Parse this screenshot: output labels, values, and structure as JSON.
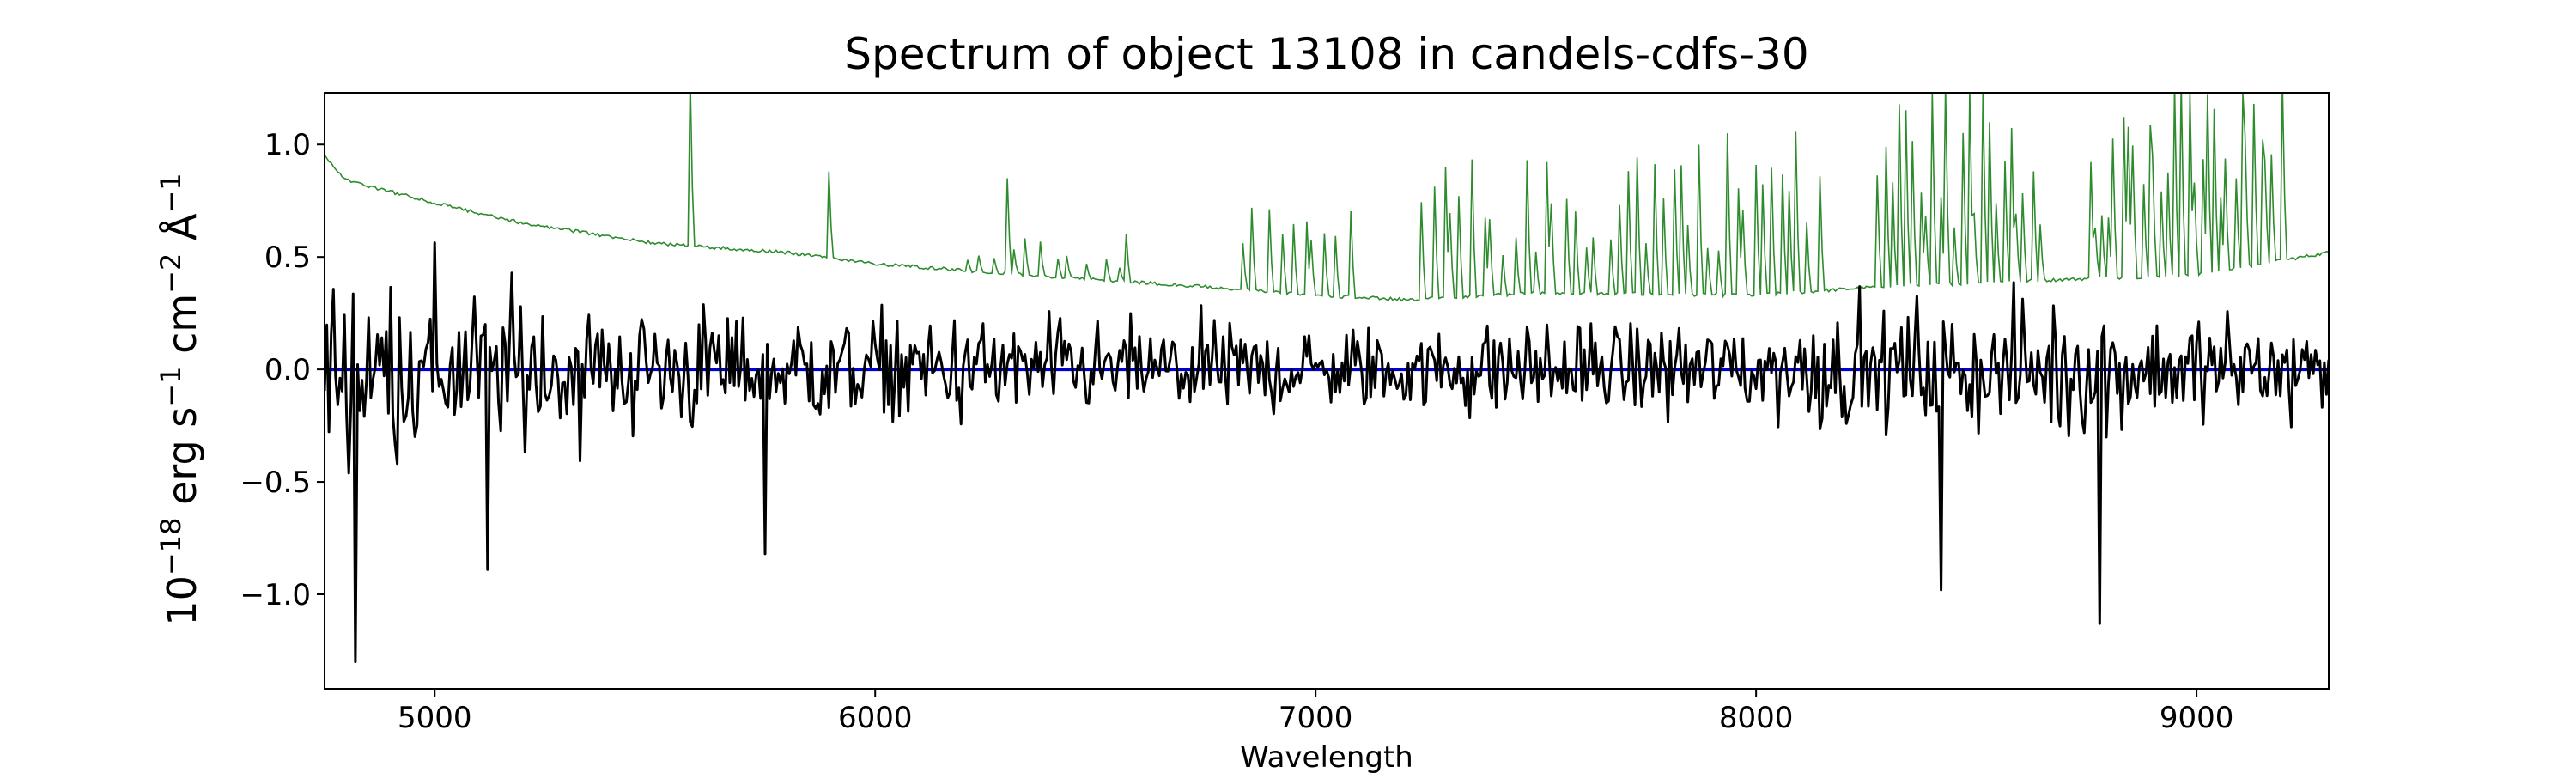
{
  "chart_data": {
    "type": "line",
    "title": "Spectrum of object 13108 in candels-cdfs-30",
    "xlabel": "Wavelength",
    "ylabel": {
      "parts": [
        "10",
        "−18",
        " erg s",
        "−1",
        " cm",
        "−2",
        " Å",
        "−1"
      ]
    },
    "xlim": [
      4750,
      9300
    ],
    "ylim": [
      -1.42,
      1.23
    ],
    "xticks": [
      5000,
      6000,
      7000,
      8000,
      9000
    ],
    "xtick_labels": [
      "5000",
      "6000",
      "7000",
      "8000",
      "9000"
    ],
    "yticks": [
      -1.0,
      -0.5,
      0.0,
      0.5,
      1.0
    ],
    "ytick_labels": [
      "−1.0",
      "−0.5",
      "0.0",
      "0.5",
      "1.0"
    ],
    "grid": false,
    "series": [
      {
        "role": "error",
        "color": "#2e8b2e",
        "continuum": [
          [
            4750,
            0.95
          ],
          [
            4800,
            0.84
          ],
          [
            5000,
            0.74
          ],
          [
            5200,
            0.65
          ],
          [
            5500,
            0.56
          ],
          [
            5800,
            0.52
          ],
          [
            6000,
            0.47
          ],
          [
            6200,
            0.44
          ],
          [
            6500,
            0.4
          ],
          [
            6800,
            0.36
          ],
          [
            7000,
            0.33
          ],
          [
            7200,
            0.31
          ],
          [
            7500,
            0.34
          ],
          [
            8000,
            0.33
          ],
          [
            8300,
            0.37
          ],
          [
            8700,
            0.4
          ],
          [
            9000,
            0.42
          ],
          [
            9300,
            0.52
          ]
        ],
        "emission_regions": [
          {
            "start": 5570,
            "end": 5590,
            "peak": 1.3,
            "count": 1
          },
          {
            "start": 5880,
            "end": 5905,
            "peak": 0.88,
            "count": 1
          },
          {
            "start": 6290,
            "end": 6310,
            "peak": 0.85,
            "count": 1
          },
          {
            "start": 6200,
            "end": 6600,
            "peak": 0.62,
            "count": 12
          },
          {
            "start": 6820,
            "end": 7100,
            "peak": 0.72,
            "count": 10
          },
          {
            "start": 7240,
            "end": 7320,
            "peak": 0.95,
            "count": 4
          },
          {
            "start": 7320,
            "end": 7700,
            "peak": 0.95,
            "count": 16
          },
          {
            "start": 7700,
            "end": 8150,
            "peak": 1.1,
            "count": 22
          },
          {
            "start": 8270,
            "end": 8650,
            "peak": 1.3,
            "count": 24
          },
          {
            "start": 8750,
            "end": 9200,
            "peak": 1.3,
            "count": 30
          }
        ]
      },
      {
        "role": "zero-line",
        "color": "#0000cc",
        "y": 0.0
      },
      {
        "role": "flux",
        "color": "#000000",
        "noise": [
          [
            4750,
            0.38
          ],
          [
            5000,
            0.36
          ],
          [
            5200,
            0.32
          ],
          [
            5500,
            0.26
          ],
          [
            6000,
            0.22
          ],
          [
            6500,
            0.19
          ],
          [
            7000,
            0.17
          ],
          [
            7500,
            0.18
          ],
          [
            8000,
            0.2
          ],
          [
            8300,
            0.24
          ],
          [
            8700,
            0.26
          ],
          [
            9000,
            0.23
          ],
          [
            9300,
            0.21
          ]
        ],
        "notable_points": [
          [
            4820,
            -1.3
          ],
          [
            5120,
            -0.89
          ],
          [
            5750,
            -0.82
          ],
          [
            8420,
            -0.98
          ],
          [
            8780,
            -1.13
          ]
        ]
      }
    ]
  }
}
